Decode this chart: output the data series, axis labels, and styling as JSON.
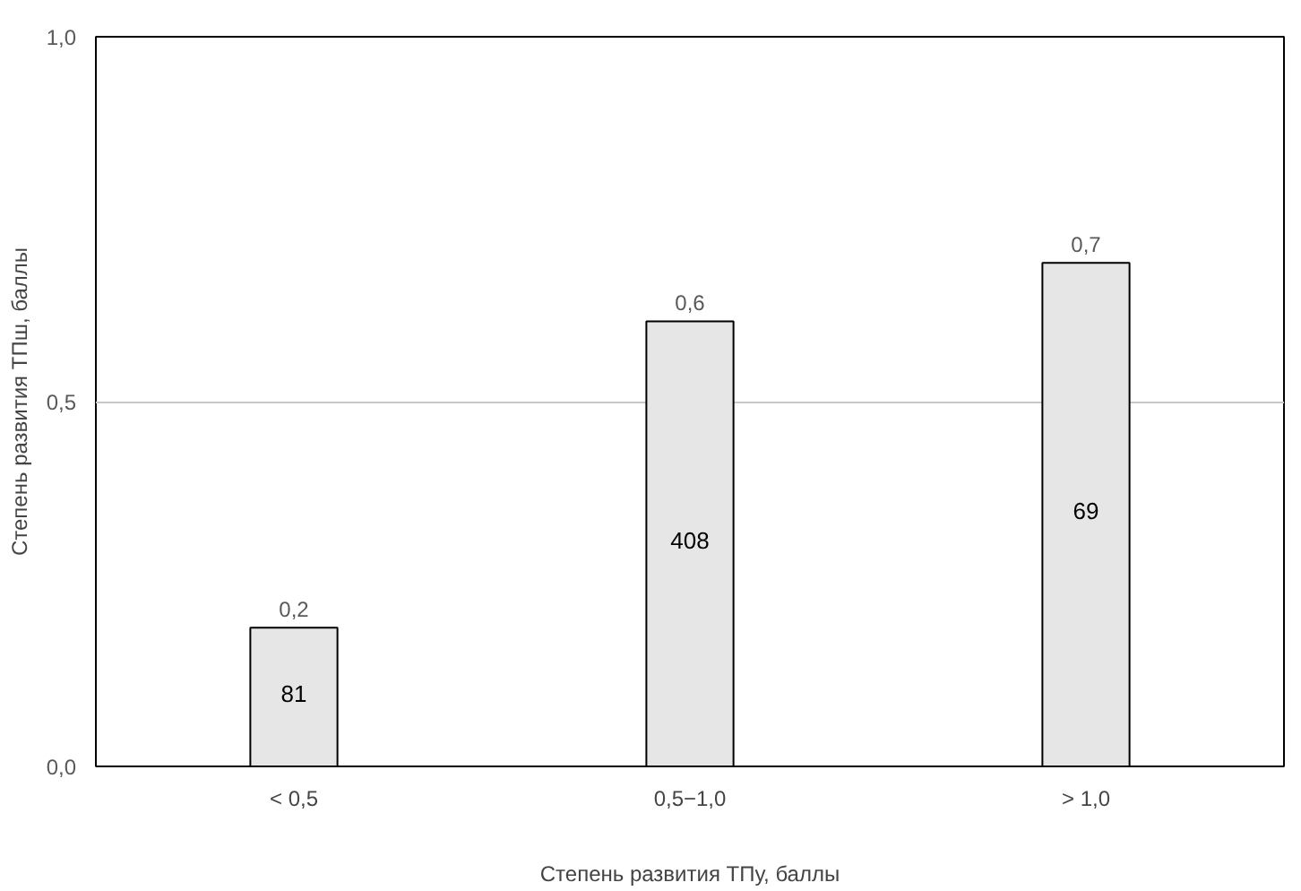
{
  "chart_data": {
    "type": "bar",
    "xlabel": "Степень развития ТПу, баллы",
    "ylabel": "Степень развития ТПш, баллы",
    "categories": [
      "< 0,5",
      "0,5−1,0",
      "> 1,0"
    ],
    "values": [
      0.19,
      0.61,
      0.69
    ],
    "value_labels": [
      "0,2",
      "0,6",
      "0,7"
    ],
    "color": "#e6e6e6",
    "ylim": [
      0,
      1
    ],
    "yticks": [
      {
        "value": 0,
        "label": "0,0"
      },
      {
        "value": 0.5,
        "label": "0,5"
      },
      {
        "value": 1,
        "label": "1,0"
      }
    ],
    "grid": "y",
    "annotations": [
      "81",
      "408",
      "69"
    ]
  }
}
